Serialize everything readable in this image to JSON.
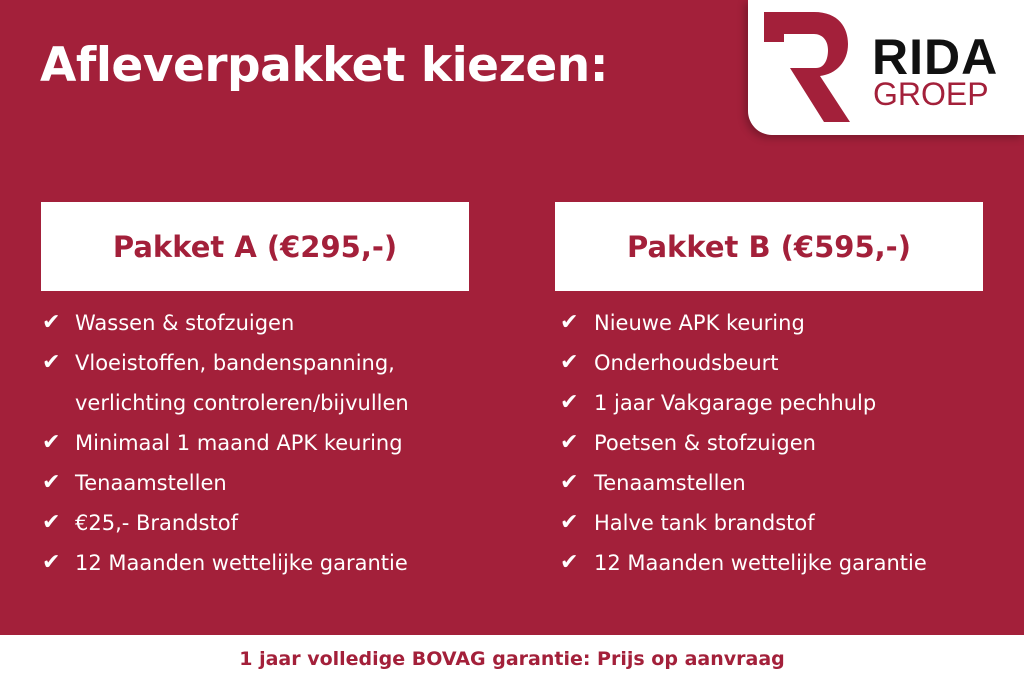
{
  "title": "Afleverpakket kiezen:",
  "logo": {
    "word1": "RIDA",
    "word2": "GROEP",
    "brand_color": "#a3203a"
  },
  "packages": [
    {
      "title": "Pakket A (€295,-)",
      "items": [
        "Wassen & stofzuigen",
        "Vloeistoffen, bandenspanning,",
        "verlichting controleren/bijvullen",
        "Minimaal 1 maand APK keuring",
        "Tenaamstellen",
        "€25,- Brandstof",
        "12 Maanden wettelijke garantie"
      ]
    },
    {
      "title": "Pakket B (€595,-)",
      "items": [
        "Nieuwe APK keuring",
        "Onderhoudsbeurt",
        "1 jaar Vakgarage pechhulp",
        "Poetsen & stofzuigen",
        "Tenaamstellen",
        "Halve tank brandstof",
        "12 Maanden wettelijke garantie"
      ]
    }
  ],
  "check_icon": "checkmark-icon",
  "footer": "1 jaar volledige BOVAG garantie: Prijs op aanvraag",
  "colors": {
    "background": "#a3203a",
    "panel": "#ffffff"
  }
}
